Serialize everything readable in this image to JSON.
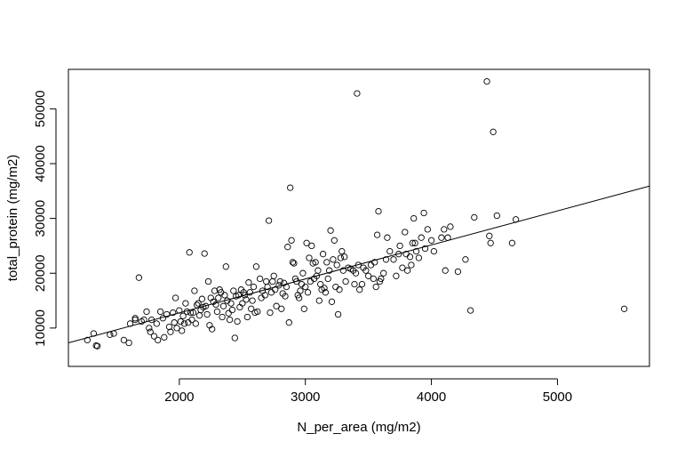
{
  "chart_data": {
    "type": "scatter",
    "title": "",
    "xlabel": "N_per_area (mg/m2)",
    "ylabel": "total_protein (mg/m2)",
    "xlim": [
      1120,
      5730
    ],
    "ylim": [
      3000,
      57200
    ],
    "x_ticks": [
      2000,
      3000,
      4000,
      5000
    ],
    "y_ticks": [
      10000,
      20000,
      30000,
      40000,
      50000
    ],
    "grid": false,
    "legend": "none",
    "marker": "open-circle",
    "colors": {
      "points": "#000000",
      "fit_line": "#000000",
      "axes": "#000000"
    },
    "fit_line": {
      "x": [
        1120,
        5730
      ],
      "y": [
        7300,
        35900
      ]
    },
    "points": [
      [
        1270,
        7800
      ],
      [
        1320,
        9000
      ],
      [
        1340,
        6800
      ],
      [
        1350,
        6700
      ],
      [
        1450,
        8800
      ],
      [
        1480,
        9000
      ],
      [
        1560,
        7800
      ],
      [
        1600,
        7300
      ],
      [
        1610,
        10800
      ],
      [
        1650,
        11500
      ],
      [
        1650,
        11800
      ],
      [
        1680,
        19200
      ],
      [
        1700,
        11200
      ],
      [
        1720,
        11500
      ],
      [
        1740,
        13000
      ],
      [
        1760,
        10000
      ],
      [
        1770,
        9300
      ],
      [
        1780,
        11500
      ],
      [
        1800,
        8500
      ],
      [
        1820,
        10800
      ],
      [
        1830,
        7800
      ],
      [
        1850,
        13000
      ],
      [
        1870,
        11800
      ],
      [
        1880,
        8300
      ],
      [
        1900,
        12500
      ],
      [
        1920,
        10200
      ],
      [
        1930,
        9300
      ],
      [
        1950,
        12800
      ],
      [
        1960,
        11000
      ],
      [
        1970,
        15500
      ],
      [
        1980,
        10000
      ],
      [
        2000,
        13200
      ],
      [
        2010,
        11200
      ],
      [
        2020,
        9500
      ],
      [
        2030,
        12200
      ],
      [
        2040,
        10800
      ],
      [
        2050,
        14500
      ],
      [
        2060,
        13000
      ],
      [
        2070,
        11000
      ],
      [
        2080,
        23800
      ],
      [
        2090,
        12800
      ],
      [
        2100,
        11500
      ],
      [
        2110,
        12800
      ],
      [
        2120,
        16800
      ],
      [
        2130,
        10800
      ],
      [
        2140,
        14200
      ],
      [
        2150,
        14500
      ],
      [
        2160,
        12300
      ],
      [
        2170,
        13300
      ],
      [
        2180,
        15300
      ],
      [
        2190,
        13800
      ],
      [
        2200,
        23600
      ],
      [
        2210,
        14000
      ],
      [
        2220,
        12500
      ],
      [
        2230,
        18500
      ],
      [
        2240,
        10500
      ],
      [
        2250,
        15500
      ],
      [
        2260,
        9800
      ],
      [
        2270,
        14800
      ],
      [
        2280,
        16800
      ],
      [
        2290,
        14300
      ],
      [
        2300,
        13000
      ],
      [
        2310,
        15500
      ],
      [
        2320,
        17000
      ],
      [
        2330,
        16500
      ],
      [
        2340,
        12000
      ],
      [
        2350,
        14000
      ],
      [
        2360,
        16000
      ],
      [
        2370,
        21200
      ],
      [
        2380,
        15000
      ],
      [
        2390,
        12700
      ],
      [
        2400,
        11500
      ],
      [
        2410,
        14500
      ],
      [
        2420,
        13300
      ],
      [
        2430,
        16800
      ],
      [
        2440,
        8200
      ],
      [
        2450,
        15800
      ],
      [
        2460,
        11200
      ],
      [
        2470,
        16000
      ],
      [
        2480,
        13800
      ],
      [
        2490,
        17000
      ],
      [
        2500,
        14500
      ],
      [
        2510,
        16500
      ],
      [
        2520,
        16000
      ],
      [
        2530,
        15200
      ],
      [
        2540,
        12000
      ],
      [
        2550,
        18300
      ],
      [
        2560,
        16500
      ],
      [
        2570,
        13500
      ],
      [
        2580,
        15000
      ],
      [
        2590,
        17500
      ],
      [
        2600,
        12800
      ],
      [
        2610,
        21200
      ],
      [
        2620,
        13000
      ],
      [
        2640,
        19000
      ],
      [
        2650,
        15500
      ],
      [
        2660,
        16800
      ],
      [
        2680,
        16000
      ],
      [
        2690,
        18500
      ],
      [
        2700,
        17500
      ],
      [
        2710,
        29600
      ],
      [
        2720,
        12800
      ],
      [
        2730,
        16500
      ],
      [
        2740,
        18500
      ],
      [
        2750,
        19500
      ],
      [
        2760,
        17000
      ],
      [
        2770,
        14000
      ],
      [
        2790,
        17800
      ],
      [
        2800,
        18500
      ],
      [
        2810,
        13500
      ],
      [
        2820,
        16300
      ],
      [
        2830,
        18200
      ],
      [
        2840,
        15800
      ],
      [
        2850,
        17500
      ],
      [
        2860,
        24800
      ],
      [
        2870,
        11000
      ],
      [
        2880,
        35600
      ],
      [
        2890,
        26000
      ],
      [
        2900,
        22000
      ],
      [
        2910,
        21800
      ],
      [
        2920,
        19000
      ],
      [
        2930,
        18500
      ],
      [
        2940,
        16000
      ],
      [
        2950,
        15500
      ],
      [
        2960,
        16800
      ],
      [
        2970,
        18000
      ],
      [
        2980,
        20000
      ],
      [
        2990,
        13500
      ],
      [
        3000,
        17500
      ],
      [
        3010,
        25500
      ],
      [
        3020,
        16500
      ],
      [
        3030,
        22800
      ],
      [
        3040,
        18500
      ],
      [
        3050,
        25000
      ],
      [
        3060,
        21800
      ],
      [
        3070,
        19000
      ],
      [
        3080,
        22000
      ],
      [
        3090,
        19500
      ],
      [
        3100,
        20500
      ],
      [
        3110,
        15000
      ],
      [
        3120,
        18000
      ],
      [
        3130,
        17000
      ],
      [
        3140,
        23500
      ],
      [
        3150,
        17300
      ],
      [
        3160,
        16500
      ],
      [
        3170,
        22000
      ],
      [
        3180,
        19000
      ],
      [
        3190,
        20500
      ],
      [
        3200,
        27800
      ],
      [
        3210,
        14800
      ],
      [
        3220,
        22500
      ],
      [
        3230,
        26000
      ],
      [
        3240,
        17500
      ],
      [
        3250,
        21500
      ],
      [
        3260,
        12500
      ],
      [
        3270,
        17000
      ],
      [
        3280,
        22800
      ],
      [
        3290,
        24000
      ],
      [
        3300,
        20500
      ],
      [
        3310,
        23000
      ],
      [
        3320,
        18500
      ],
      [
        3340,
        21000
      ],
      [
        3360,
        20800
      ],
      [
        3380,
        20500
      ],
      [
        3390,
        18000
      ],
      [
        3400,
        20000
      ],
      [
        3410,
        52800
      ],
      [
        3420,
        21500
      ],
      [
        3430,
        17000
      ],
      [
        3450,
        18000
      ],
      [
        3460,
        21000
      ],
      [
        3480,
        20500
      ],
      [
        3500,
        19500
      ],
      [
        3520,
        21500
      ],
      [
        3540,
        19000
      ],
      [
        3550,
        22000
      ],
      [
        3560,
        17500
      ],
      [
        3570,
        27000
      ],
      [
        3580,
        31300
      ],
      [
        3590,
        18500
      ],
      [
        3600,
        19000
      ],
      [
        3620,
        20000
      ],
      [
        3640,
        22500
      ],
      [
        3650,
        26500
      ],
      [
        3670,
        24000
      ],
      [
        3700,
        22500
      ],
      [
        3720,
        19500
      ],
      [
        3740,
        23500
      ],
      [
        3750,
        25000
      ],
      [
        3770,
        21000
      ],
      [
        3790,
        27500
      ],
      [
        3800,
        23500
      ],
      [
        3810,
        20500
      ],
      [
        3830,
        23000
      ],
      [
        3840,
        21500
      ],
      [
        3850,
        25500
      ],
      [
        3860,
        30000
      ],
      [
        3870,
        25500
      ],
      [
        3880,
        24000
      ],
      [
        3900,
        22800
      ],
      [
        3920,
        26500
      ],
      [
        3940,
        31000
      ],
      [
        3950,
        24500
      ],
      [
        3970,
        28000
      ],
      [
        4000,
        26000
      ],
      [
        4020,
        24000
      ],
      [
        4080,
        26500
      ],
      [
        4100,
        28000
      ],
      [
        4110,
        20500
      ],
      [
        4130,
        26500
      ],
      [
        4150,
        28500
      ],
      [
        4210,
        20300
      ],
      [
        4270,
        22500
      ],
      [
        4310,
        13200
      ],
      [
        4340,
        30200
      ],
      [
        4440,
        55000
      ],
      [
        4460,
        26800
      ],
      [
        4470,
        25500
      ],
      [
        4490,
        45800
      ],
      [
        4520,
        30500
      ],
      [
        4640,
        25500
      ],
      [
        4670,
        29800
      ],
      [
        5530,
        13500
      ]
    ]
  }
}
